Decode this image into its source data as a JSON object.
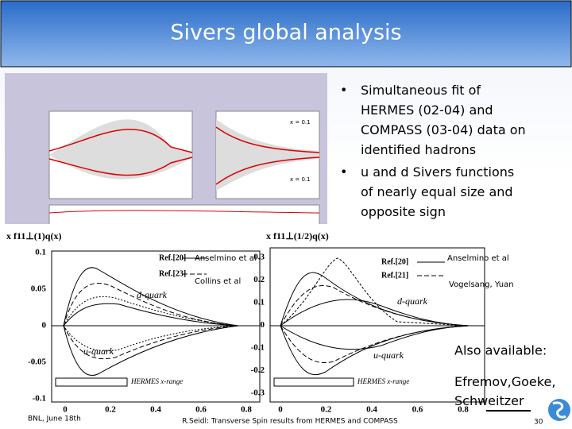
{
  "slide": {
    "title": "Sivers global analysis",
    "bullets": [
      "Simultaneous fit of HERMES (02-04) and COMPASS (03-04) data on identified hadrons",
      "u and d Sivers functions of nearly equal size and opposite sign"
    ],
    "top_figure": {
      "labels": [
        "x = 0.1",
        "x = 0.1"
      ]
    },
    "left_plot": {
      "ylabel": "x f11⊥(1)q(x)",
      "yticks": [
        "0.1",
        "0.05",
        "0",
        "-0.05",
        "-0.1"
      ],
      "xticks": [
        "0",
        "0.2",
        "0.4",
        "0.6",
        "0.8"
      ],
      "legend": [
        "Ref.[20]",
        "Ref.[23]"
      ],
      "overlay": [
        "Anselmino et al",
        "Collins et al"
      ],
      "curve_labels": [
        "d-quark",
        "u-quark"
      ],
      "range_label": "HERMES x-range"
    },
    "right_plot": {
      "ylabel": "x f11⊥(1/2)q(x)",
      "yticks": [
        "0.3",
        "0.2",
        "0.1",
        "0",
        "-0.1",
        "-0.2",
        "-0.3"
      ],
      "xticks": [
        "0",
        "0.2",
        "0.4",
        "0.6",
        "0.8"
      ],
      "legend": [
        "Ref.[20]",
        "Ref.[21]"
      ],
      "overlay": [
        "Anselmino et al",
        "Vogelsang, Yuan"
      ],
      "curve_labels": [
        "d-quark",
        "u-quark"
      ],
      "range_label": "HERMES x-range"
    },
    "also_available": "Also available:",
    "also_names": "Efremov,Goeke, Schweitzer",
    "footer": {
      "left": "BNL, June 18th",
      "center": "R.Seidl: Transverse Spin results from HERMES and COMPASS",
      "page": "30"
    }
  }
}
